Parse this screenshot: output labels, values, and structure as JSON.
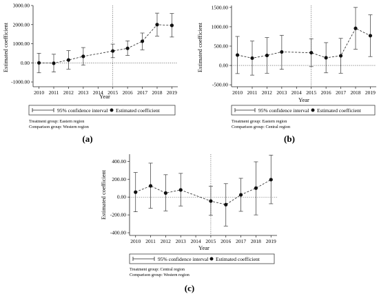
{
  "figure": {
    "panel_labels": [
      "(a)",
      "(b)",
      "(c)"
    ]
  },
  "chart_data": [
    {
      "type": "scatter",
      "panel": "(a)",
      "xlabel": "Year",
      "ylabel": "Estimated coefficient",
      "x": [
        2010,
        2011,
        2012,
        2013,
        2014,
        2015,
        2016,
        2017,
        2018,
        2019
      ],
      "xticks": [
        "2010",
        "2011",
        "2012",
        "2013",
        "2014",
        "2015",
        "2016",
        "2017",
        "2018",
        "2019"
      ],
      "yticks": [
        -1000,
        0,
        1000,
        2000,
        3000
      ],
      "yticklabels": [
        "-1000.00",
        "0.00",
        "1000.00",
        "2000.00",
        "3000.00"
      ],
      "ylim": [
        -1250,
        3000
      ],
      "xlim": [
        2009.6,
        2019.4
      ],
      "vline_x": 2015,
      "hline_y": 0,
      "series": [
        {
          "values": [
            0,
            -20,
            150,
            340,
            620,
            760,
            1130,
            2000,
            1960
          ],
          "x": [
            2010,
            2011,
            2012,
            2013,
            2015,
            2016,
            2017,
            2018,
            2019
          ],
          "ci_low": [
            -520,
            -480,
            -330,
            -120,
            270,
            390,
            680,
            1400,
            1350
          ],
          "ci_high": [
            500,
            450,
            640,
            800,
            980,
            1150,
            1560,
            2600,
            2580
          ]
        }
      ],
      "legend": {
        "entries": [
          "95% confidence interval",
          "Estimated coefficient"
        ],
        "placement": "below"
      },
      "notes": [
        "Treatment group: Eastern region",
        "Comparison group: Western region"
      ]
    },
    {
      "type": "scatter",
      "panel": "(b)",
      "xlabel": "Year",
      "ylabel": "Estimated coefficient",
      "x": [
        2010,
        2011,
        2012,
        2013,
        2014,
        2015,
        2016,
        2017,
        2018,
        2019
      ],
      "xticks": [
        "2010",
        "2011",
        "2012",
        "2013",
        "2014",
        "2015",
        "2016",
        "2017",
        "2018",
        "2019"
      ],
      "yticks": [
        -500,
        0,
        500,
        1000,
        1500
      ],
      "yticklabels": [
        "-500.00",
        "0.00",
        "500.00",
        "1000.00",
        "1500.00"
      ],
      "ylim": [
        -550,
        1550
      ],
      "xlim": [
        2009.6,
        2019.4
      ],
      "vline_x": 2015,
      "hline_y": 0,
      "series": [
        {
          "values": [
            270,
            190,
            260,
            350,
            330,
            200,
            250,
            960,
            770
          ],
          "x": [
            2010,
            2011,
            2012,
            2013,
            2015,
            2016,
            2017,
            2018,
            2019
          ],
          "ci_low": [
            -210,
            -250,
            -200,
            -100,
            -30,
            -190,
            -200,
            420,
            230
          ],
          "ci_high": [
            750,
            630,
            720,
            780,
            690,
            590,
            700,
            1500,
            1310
          ]
        }
      ],
      "legend": {
        "entries": [
          "95% confidence interval",
          "Estimated coefficient"
        ],
        "placement": "below"
      },
      "notes": [
        "Treatment group: Eastern region",
        "Comparison group: Central region"
      ]
    },
    {
      "type": "scatter",
      "panel": "(c)",
      "xlabel": "Year",
      "ylabel": "Estimated coefficient",
      "x": [
        2010,
        2011,
        2012,
        2013,
        2014,
        2015,
        2016,
        2017,
        2018,
        2019
      ],
      "xticks": [
        "2010",
        "2011",
        "2012",
        "2013",
        "2014",
        "2015",
        "2016",
        "2017",
        "2018",
        "2019"
      ],
      "yticks": [
        -400,
        -200,
        0,
        200,
        400
      ],
      "yticklabels": [
        "-400.00",
        "-200.00",
        "0.00",
        "200.00",
        "400.00"
      ],
      "ylim": [
        -430,
        480
      ],
      "xlim": [
        2009.6,
        2019.4
      ],
      "vline_x": 2015,
      "hline_y": 0,
      "series": [
        {
          "values": [
            55,
            125,
            45,
            80,
            -45,
            -85,
            25,
            100,
            195
          ],
          "x": [
            2010,
            2011,
            2012,
            2013,
            2015,
            2016,
            2017,
            2018,
            2019
          ],
          "ci_low": [
            -165,
            -125,
            -155,
            -100,
            -205,
            -325,
            -160,
            -200,
            -75
          ],
          "ci_high": [
            275,
            380,
            250,
            265,
            120,
            150,
            210,
            395,
            470
          ]
        }
      ],
      "legend": {
        "entries": [
          "95% confidence interval",
          "Estimated coefficient"
        ],
        "placement": "below"
      },
      "notes": [
        "Treatment group: Central region",
        "Comparison group: Western region"
      ]
    }
  ]
}
